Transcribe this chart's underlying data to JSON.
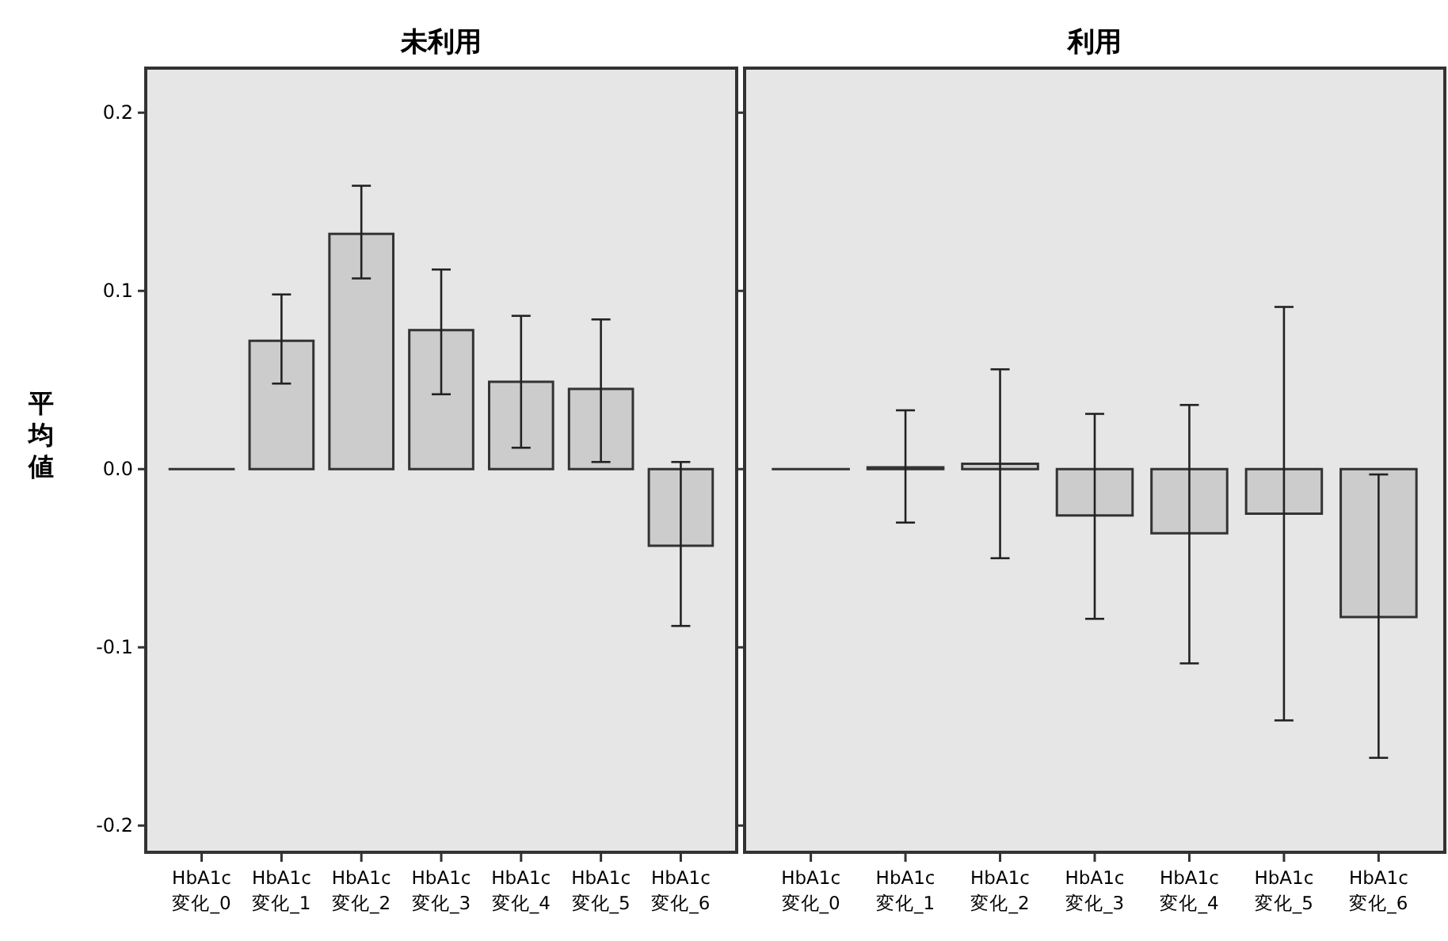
{
  "chart_data": [
    {
      "type": "bar",
      "title": "未利用",
      "ylabel": "平均値",
      "categories": [
        "HbA1c\n変化_0",
        "HbA1c\n変化_1",
        "HbA1c\n変化_2",
        "HbA1c\n変化_3",
        "HbA1c\n変化_4",
        "HbA1c\n変化_5",
        "HbA1c\n変化_6"
      ],
      "values": [
        0,
        0.072,
        0.132,
        0.078,
        0.049,
        0.045,
        -0.043
      ],
      "errors": [
        null,
        [
          0.048,
          0.098
        ],
        [
          0.107,
          0.159
        ],
        [
          0.042,
          0.112
        ],
        [
          0.012,
          0.086
        ],
        [
          0.004,
          0.084
        ],
        [
          -0.088,
          0.004
        ]
      ],
      "color": "#cccccc",
      "ylim": [
        -0.215,
        0.225
      ],
      "yticks": [
        -0.2,
        -0.1,
        {
          "value": 0,
          "label": "0.0"
        },
        0.1,
        0.2
      ],
      "grid": false
    },
    {
      "type": "bar",
      "title": "利用",
      "categories": [
        "HbA1c\n変化_0",
        "HbA1c\n変化_1",
        "HbA1c\n変化_2",
        "HbA1c\n変化_3",
        "HbA1c\n変化_4",
        "HbA1c\n変化_5",
        "HbA1c\n変化_6"
      ],
      "values": [
        0,
        0.001,
        0.003,
        -0.026,
        -0.036,
        -0.025,
        -0.083
      ],
      "errors": [
        null,
        [
          -0.03,
          0.033
        ],
        [
          -0.05,
          0.056
        ],
        [
          -0.084,
          0.031
        ],
        [
          -0.109,
          0.036
        ],
        [
          -0.141,
          0.091
        ],
        [
          -0.162,
          -0.003
        ]
      ],
      "color": "#cccccc",
      "ylim": [
        -0.215,
        0.225
      ],
      "yticks": [
        -0.2,
        -0.1,
        0,
        0.1,
        0.2
      ],
      "grid": false,
      "tick_labels": "x"
    }
  ]
}
